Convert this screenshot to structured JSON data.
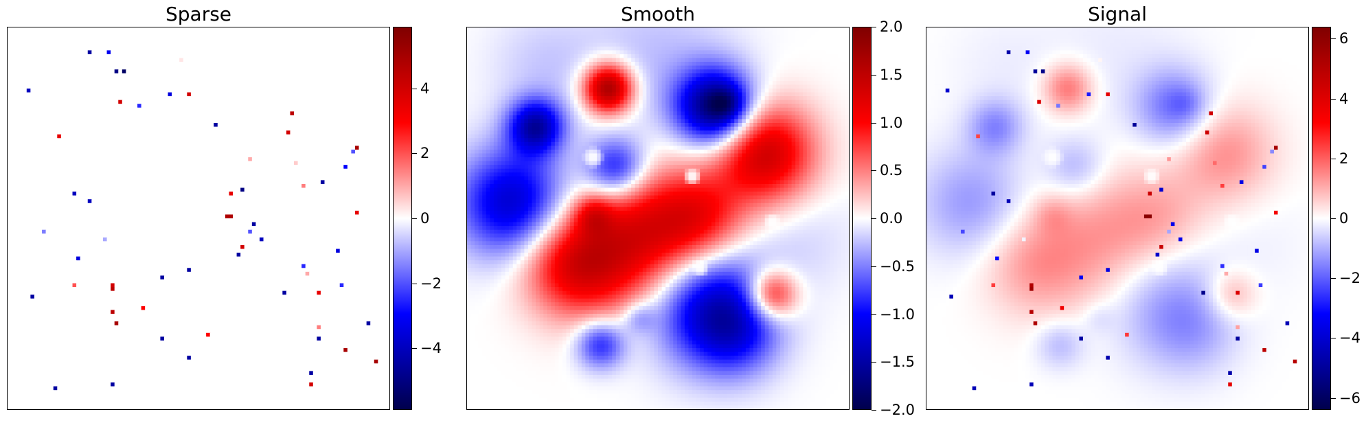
{
  "panels": [
    {
      "title": "Sparse",
      "colorbar": {
        "min": -5.9,
        "max": 5.9,
        "ticks": [
          4,
          2,
          0,
          -2,
          -4
        ],
        "tick_labels": [
          "4",
          "2",
          "0",
          "−2",
          "−4"
        ]
      },
      "pixels": [
        {
          "x": 21,
          "y": 6,
          "v": -4.5
        },
        {
          "x": 26,
          "y": 6,
          "v": -3.2
        },
        {
          "x": 28,
          "y": 11,
          "v": -5.0
        },
        {
          "x": 30,
          "y": 11,
          "v": -5.5
        },
        {
          "x": 5,
          "y": 16,
          "v": -4.0
        },
        {
          "x": 42,
          "y": 17,
          "v": -3.5
        },
        {
          "x": 47,
          "y": 17,
          "v": 4.0
        },
        {
          "x": 29,
          "y": 19,
          "v": 4.0
        },
        {
          "x": 34,
          "y": 20,
          "v": -2.5
        },
        {
          "x": 74,
          "y": 22,
          "v": 4.5
        },
        {
          "x": 54,
          "y": 25,
          "v": -4.5
        },
        {
          "x": 73,
          "y": 27,
          "v": 4.0
        },
        {
          "x": 13,
          "y": 28,
          "v": 3.5
        },
        {
          "x": 91,
          "y": 31,
          "v": 5.0
        },
        {
          "x": 90,
          "y": 32,
          "v": -2.0
        },
        {
          "x": 63,
          "y": 34,
          "v": 1.0
        },
        {
          "x": 75,
          "y": 35,
          "v": 0.6
        },
        {
          "x": 88,
          "y": 36,
          "v": -3.0
        },
        {
          "x": 82,
          "y": 40,
          "v": -4.5
        },
        {
          "x": 77,
          "y": 41,
          "v": 1.5
        },
        {
          "x": 17,
          "y": 43,
          "v": -4.0
        },
        {
          "x": 61,
          "y": 42,
          "v": -5.0
        },
        {
          "x": 58,
          "y": 43,
          "v": 3.5
        },
        {
          "x": 21,
          "y": 45,
          "v": -4.0
        },
        {
          "x": 57,
          "y": 49,
          "v": 4.8
        },
        {
          "x": 58,
          "y": 49,
          "v": 4.8
        },
        {
          "x": 91,
          "y": 48,
          "v": 3.5
        },
        {
          "x": 64,
          "y": 51,
          "v": -4.5
        },
        {
          "x": 9,
          "y": 53,
          "v": -1.5
        },
        {
          "x": 63,
          "y": 53,
          "v": -2.0
        },
        {
          "x": 66,
          "y": 55,
          "v": -4.0
        },
        {
          "x": 25,
          "y": 55,
          "v": -1.0
        },
        {
          "x": 61,
          "y": 57,
          "v": 4.0
        },
        {
          "x": 86,
          "y": 58,
          "v": -3.5
        },
        {
          "x": 60,
          "y": 59,
          "v": -4.5
        },
        {
          "x": 18,
          "y": 60,
          "v": -3.5
        },
        {
          "x": 77,
          "y": 62,
          "v": -2.5
        },
        {
          "x": 78,
          "y": 64,
          "v": 1.0
        },
        {
          "x": 47,
          "y": 63,
          "v": -4.5
        },
        {
          "x": 40,
          "y": 65,
          "v": -4.5
        },
        {
          "x": 27,
          "y": 67,
          "v": 4.0
        },
        {
          "x": 17,
          "y": 67,
          "v": 2.0
        },
        {
          "x": 87,
          "y": 67,
          "v": -2.5
        },
        {
          "x": 27,
          "y": 68,
          "v": 4.5
        },
        {
          "x": 72,
          "y": 69,
          "v": -4.5
        },
        {
          "x": 81,
          "y": 69,
          "v": 3.5
        },
        {
          "x": 6,
          "y": 70,
          "v": -4.5
        },
        {
          "x": 35,
          "y": 73,
          "v": 3.0
        },
        {
          "x": 27,
          "y": 74,
          "v": 4.5
        },
        {
          "x": 28,
          "y": 77,
          "v": 5.0
        },
        {
          "x": 94,
          "y": 77,
          "v": -4.5
        },
        {
          "x": 81,
          "y": 78,
          "v": 1.5
        },
        {
          "x": 52,
          "y": 80,
          "v": 3.0
        },
        {
          "x": 40,
          "y": 81,
          "v": -4.5
        },
        {
          "x": 81,
          "y": 81,
          "v": -4.5
        },
        {
          "x": 88,
          "y": 84,
          "v": 5.0
        },
        {
          "x": 47,
          "y": 86,
          "v": -4.5
        },
        {
          "x": 96,
          "y": 87,
          "v": 5.0
        },
        {
          "x": 79,
          "y": 90,
          "v": -4.5
        },
        {
          "x": 27,
          "y": 93,
          "v": -4.5
        },
        {
          "x": 79,
          "y": 93,
          "v": 4.0
        },
        {
          "x": 12,
          "y": 94,
          "v": -4.5
        },
        {
          "x": 45,
          "y": 8,
          "v": 0.3
        }
      ]
    },
    {
      "title": "Smooth",
      "colorbar": {
        "min": -2.0,
        "max": 2.0,
        "ticks": [
          2.0,
          1.5,
          1.0,
          0.5,
          0.0,
          -0.5,
          -1.0,
          -1.5,
          -2.0
        ],
        "tick_labels": [
          "2.0",
          "1.5",
          "1.0",
          "0.5",
          "0.0",
          "−0.5",
          "−1.0",
          "−1.5",
          "−2.0"
        ]
      },
      "blobs": [
        {
          "x": 37,
          "y": 16,
          "s": 4.5,
          "a": 1.8
        },
        {
          "x": 65,
          "y": 21,
          "s": 7.0,
          "a": -1.8
        },
        {
          "x": 68,
          "y": 20,
          "s": 3.0,
          "a": -0.5
        },
        {
          "x": 18,
          "y": 26,
          "s": 5.0,
          "a": -1.4
        },
        {
          "x": 78,
          "y": 33,
          "s": 9.0,
          "a": 1.4
        },
        {
          "x": 39,
          "y": 37,
          "s": 5.5,
          "a": -1.0
        },
        {
          "x": 12,
          "y": 46,
          "s": 10.0,
          "a": -1.3
        },
        {
          "x": 27,
          "y": 62,
          "s": 9.0,
          "a": 0.9
        },
        {
          "x": 39,
          "y": 59,
          "s": 12.0,
          "a": 0.9
        },
        {
          "x": 53,
          "y": 52,
          "s": 11.0,
          "a": 0.8
        },
        {
          "x": 62,
          "y": 50,
          "s": 8.0,
          "a": 0.6
        },
        {
          "x": 33,
          "y": 49,
          "s": 3.5,
          "a": 0.6
        },
        {
          "x": 63,
          "y": 72,
          "s": 11.0,
          "a": -1.2
        },
        {
          "x": 70,
          "y": 80,
          "s": 8.0,
          "a": -0.7
        },
        {
          "x": 80,
          "y": 70,
          "s": 4.5,
          "a": 1.1
        },
        {
          "x": 35,
          "y": 83,
          "s": 4.5,
          "a": -0.9
        },
        {
          "x": 45,
          "y": 76,
          "s": 3.0,
          "a": -0.4
        },
        {
          "x": 50,
          "y": 8,
          "s": 14.0,
          "a": -0.25
        },
        {
          "x": 20,
          "y": 10,
          "s": 10.0,
          "a": -0.2
        },
        {
          "x": 88,
          "y": 55,
          "s": 10.0,
          "a": -0.15
        }
      ],
      "rings": [
        {
          "x": 33,
          "y": 34,
          "r": 3.0
        },
        {
          "x": 59,
          "y": 39,
          "r": 2.5
        },
        {
          "x": 80,
          "y": 51,
          "r": 2.5
        },
        {
          "x": 61,
          "y": 63,
          "r": 2.5
        }
      ]
    },
    {
      "title": "Signal",
      "colorbar": {
        "min": -6.4,
        "max": 6.4,
        "ticks": [
          6,
          4,
          2,
          0,
          -2,
          -4,
          -6
        ],
        "tick_labels": [
          "6",
          "4",
          "2",
          "0",
          "−2",
          "−4",
          "−6"
        ]
      }
    }
  ],
  "colors": {
    "low": "#00004c",
    "mid_low": "#0000ff",
    "zero": "#ffffff",
    "mid_high": "#ff0000",
    "high": "#800000"
  }
}
